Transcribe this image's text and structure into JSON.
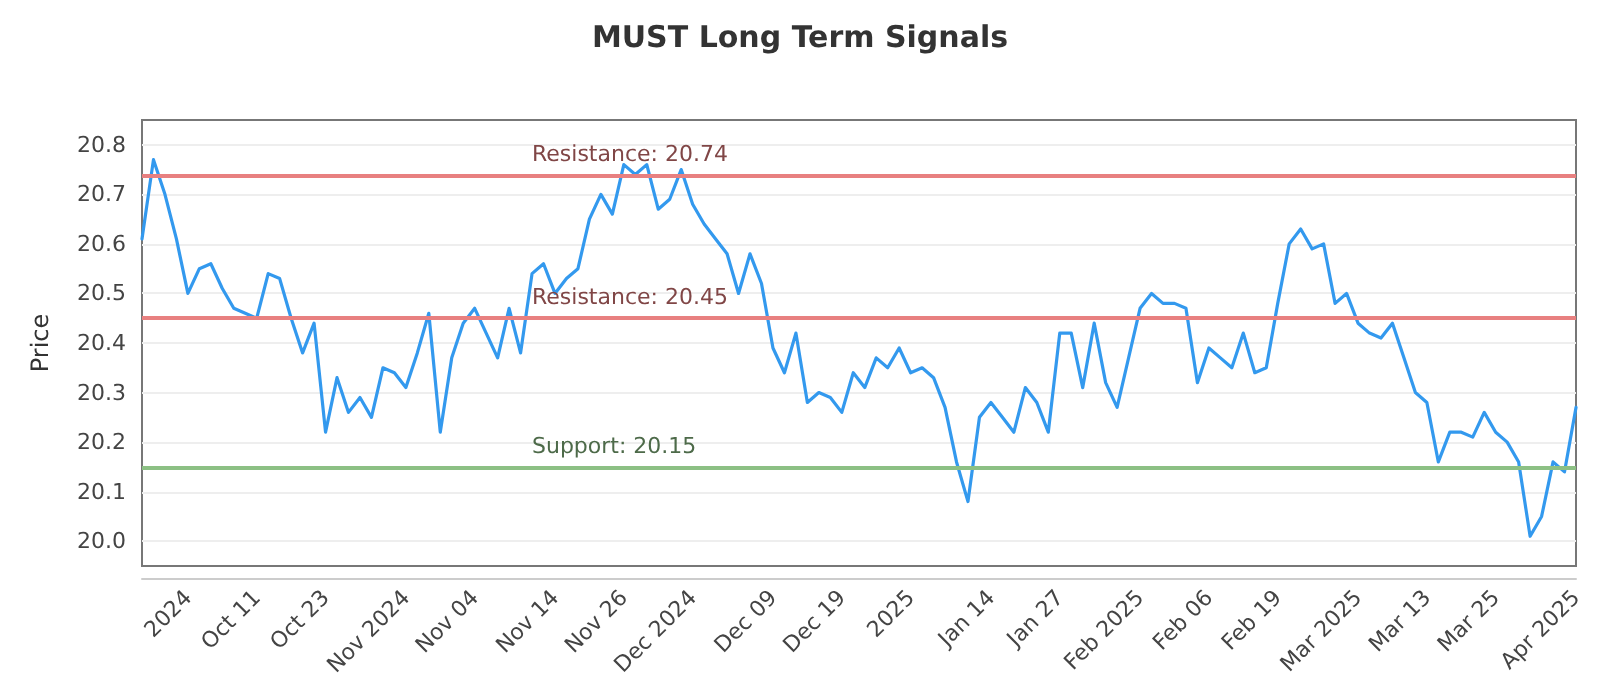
{
  "chart_data": {
    "type": "line",
    "title": "MUST Long Term Signals",
    "ylabel": "Price",
    "categories": [
      null,
      null,
      null,
      null,
      "2024",
      null,
      null,
      null,
      null,
      null,
      "Oct 11",
      null,
      null,
      null,
      null,
      null,
      "Oct 23",
      null,
      null,
      null,
      null,
      null,
      null,
      "Nov 2024",
      null,
      null,
      null,
      null,
      null,
      "Nov 04",
      null,
      null,
      null,
      null,
      null,
      null,
      "Nov 14",
      null,
      null,
      null,
      null,
      null,
      "Nov 26",
      null,
      null,
      null,
      null,
      null,
      "Dec 2024",
      null,
      null,
      null,
      null,
      null,
      null,
      "Dec 09",
      null,
      null,
      null,
      null,
      null,
      "Dec 19",
      null,
      null,
      null,
      null,
      null,
      "2025",
      null,
      null,
      null,
      null,
      null,
      null,
      "Jan 14",
      null,
      null,
      null,
      null,
      null,
      "Jan 27",
      null,
      null,
      null,
      null,
      null,
      null,
      "Feb 2025",
      null,
      null,
      null,
      null,
      null,
      "Feb 06",
      null,
      null,
      null,
      null,
      null,
      "Feb 19",
      null,
      null,
      null,
      null,
      null,
      null,
      "Mar 2025",
      null,
      null,
      null,
      null,
      null,
      "Mar 13",
      null,
      null,
      null,
      null,
      null,
      "Mar 25",
      null,
      null,
      null,
      null,
      null,
      null,
      "Apr 2025"
    ],
    "series": [
      {
        "color": "#3399ee",
        "values": [
          20.61,
          20.77,
          20.7,
          20.61,
          20.5,
          20.55,
          20.56,
          20.51,
          20.47,
          20.46,
          20.45,
          20.54,
          20.53,
          20.45,
          20.38,
          20.44,
          20.22,
          20.33,
          20.26,
          20.29,
          20.25,
          20.35,
          20.34,
          20.31,
          20.38,
          20.46,
          20.22,
          20.37,
          20.44,
          20.47,
          20.42,
          20.37,
          20.47,
          20.38,
          20.54,
          20.56,
          20.5,
          20.53,
          20.55,
          20.65,
          20.7,
          20.66,
          20.76,
          20.74,
          20.76,
          20.67,
          20.69,
          20.75,
          20.68,
          20.64,
          20.61,
          20.58,
          20.5,
          20.58,
          20.52,
          20.39,
          20.34,
          20.42,
          20.28,
          20.3,
          20.29,
          20.26,
          20.34,
          20.31,
          20.37,
          20.35,
          20.39,
          20.34,
          20.35,
          20.33,
          20.27,
          20.16,
          20.08,
          20.25,
          20.28,
          20.25,
          20.22,
          20.31,
          20.28,
          20.22,
          20.42,
          20.42,
          20.31,
          20.44,
          20.32,
          20.27,
          20.37,
          20.47,
          20.5,
          20.48,
          20.48,
          20.47,
          20.32,
          20.39,
          20.37,
          20.35,
          20.42,
          20.34,
          20.35,
          20.48,
          20.6,
          20.63,
          20.59,
          20.6,
          20.48,
          20.5,
          20.44,
          20.42,
          20.41,
          20.44,
          20.37,
          20.3,
          20.28,
          20.16,
          20.22,
          20.22,
          20.21,
          20.26,
          20.22,
          20.2,
          20.16,
          20.01,
          20.05,
          20.16,
          20.14,
          20.27
        ]
      }
    ],
    "ylim": [
      19.95,
      20.85
    ],
    "yticks": [
      {
        "value": 20,
        "label": "20.0"
      },
      20.1,
      20.2,
      20.3,
      20.4,
      20.5,
      20.6,
      20.7,
      20.8
    ],
    "grid": "y",
    "marker": "none",
    "line_style": "solid",
    "ref_lines": [
      {
        "axis": "y",
        "value": 20.74,
        "label": "Resistance: 20.74",
        "color": "#e88080"
      },
      {
        "axis": "y",
        "value": 20.45,
        "label": "Resistance: 20.45",
        "color": "#e88080"
      },
      {
        "axis": "y",
        "value": 20.15,
        "label": "Support: 20.15",
        "color": "#8cc084"
      }
    ]
  }
}
